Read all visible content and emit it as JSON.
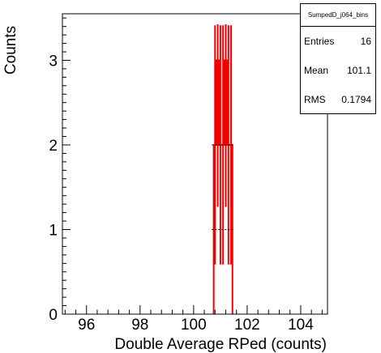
{
  "chart_data": {
    "type": "histogram",
    "xlabel": "Double Average RPed (counts)",
    "ylabel": "Counts",
    "xlim": [
      95.1,
      105
    ],
    "ylim": [
      0,
      3.55
    ],
    "x_ticks": [
      96,
      98,
      100,
      102,
      104
    ],
    "y_ticks": [
      0,
      1,
      2,
      3
    ],
    "bin_width": 0.1,
    "bins": [
      {
        "x": 100.8,
        "count": 2
      },
      {
        "x": 100.9,
        "count": 3
      },
      {
        "x": 101.0,
        "count": 2
      },
      {
        "x": 101.1,
        "count": 2
      },
      {
        "x": 101.2,
        "count": 3
      },
      {
        "x": 101.3,
        "count": 2
      },
      {
        "x": 101.4,
        "count": 2
      }
    ],
    "series_color": "#ee0000",
    "grid": false
  },
  "stats": {
    "title": "SumpedD_j064_bins",
    "entries_label": "Entries",
    "entries_value": "16",
    "mean_label": "Mean",
    "mean_value": "101.1",
    "rms_label": "RMS",
    "rms_value": "0.1794"
  }
}
